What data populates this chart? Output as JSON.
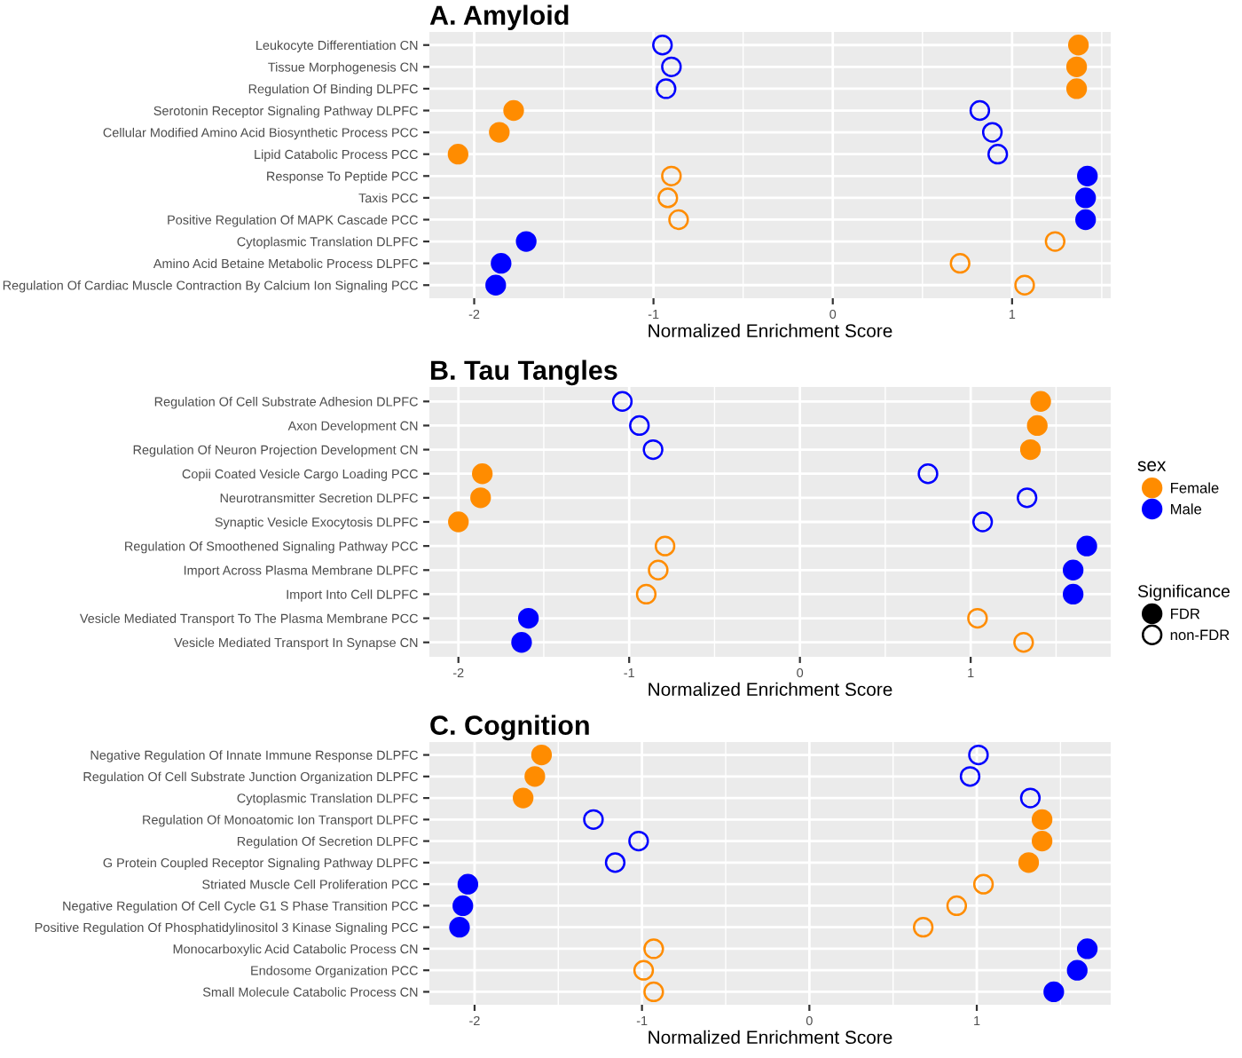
{
  "chart_data": [
    {
      "type": "scatter",
      "title": "A. Amyloid",
      "xlabel": "Normalized Enrichment Score",
      "orientation": "horizontal",
      "grid": true,
      "xlim": [
        -2.25,
        1.55
      ],
      "xticks": [
        -2,
        -1,
        0,
        1
      ],
      "categories": [
        "Leukocyte Differentiation CN",
        "Tissue Morphogenesis CN",
        "Regulation Of Binding DLPFC",
        "Serotonin Receptor Signaling Pathway DLPFC",
        "Cellular Modified Amino Acid Biosynthetic Process PCC",
        "Lipid Catabolic Process PCC",
        "Response To Peptide PCC",
        "Taxis PCC",
        "Positive Regulation Of MAPK Cascade PCC",
        "Cytoplasmic Translation DLPFC",
        "Amino Acid Betaine Metabolic Process DLPFC",
        "Regulation Of Cardiac Muscle Contraction By Calcium Ion Signaling PCC"
      ],
      "series": [
        {
          "color": "#ff8c00",
          "marker": "circle",
          "values": [
            1.37,
            1.36,
            1.36,
            -1.78,
            -1.86,
            -2.09,
            null,
            null,
            null,
            null,
            null,
            null
          ]
        },
        {
          "color": "#ff8c00",
          "marker": "open circle",
          "values": [
            null,
            null,
            null,
            null,
            null,
            null,
            -0.9,
            -0.92,
            -0.86,
            1.24,
            0.71,
            1.07
          ]
        },
        {
          "color": "#0000ff",
          "marker": "circle",
          "values": [
            null,
            null,
            null,
            null,
            null,
            null,
            1.42,
            1.41,
            1.41,
            -1.71,
            -1.85,
            -1.88
          ]
        },
        {
          "color": "#0000ff",
          "marker": "open circle",
          "values": [
            -0.95,
            -0.9,
            -0.93,
            0.82,
            0.89,
            0.92,
            null,
            null,
            null,
            null,
            null,
            null
          ]
        }
      ]
    },
    {
      "type": "scatter",
      "title": "B. Tau Tangles",
      "xlabel": "Normalized Enrichment Score",
      "orientation": "horizontal",
      "grid": true,
      "xlim": [
        -2.17,
        1.82
      ],
      "xticks": [
        -2,
        -1,
        0,
        1
      ],
      "legend": "right",
      "legend_title": "sex",
      "annotations": [
        "Significance"
      ],
      "categories": [
        "Regulation Of Cell Substrate Adhesion DLPFC",
        "Axon Development CN",
        "Regulation Of Neuron Projection Development CN",
        "Copii Coated Vesicle Cargo Loading PCC",
        "Neurotransmitter Secretion DLPFC",
        "Synaptic Vesicle Exocytosis DLPFC",
        "Regulation Of Smoothened Signaling Pathway PCC",
        "Import Across Plasma Membrane DLPFC",
        "Import Into Cell DLPFC",
        "Vesicle Mediated Transport To The Plasma Membrane PCC",
        "Vesicle Mediated Transport In Synapse CN"
      ],
      "series": [
        {
          "name": "Female",
          "color": "#ff8c00",
          "marker": "circle",
          "values": [
            1.41,
            1.39,
            1.35,
            -1.86,
            -1.87,
            -2.0,
            null,
            null,
            null,
            null,
            null
          ]
        },
        {
          "color": "#ff8c00",
          "marker": "open circle",
          "values": [
            null,
            null,
            null,
            null,
            null,
            null,
            -0.79,
            -0.83,
            -0.9,
            1.04,
            1.31
          ]
        },
        {
          "name": "Male",
          "color": "#0000ff",
          "marker": "circle",
          "values": [
            null,
            null,
            null,
            null,
            null,
            null,
            1.68,
            1.6,
            1.6,
            -1.59,
            -1.63
          ]
        },
        {
          "color": "#0000ff",
          "marker": "open circle",
          "values": [
            -1.04,
            -0.94,
            -0.86,
            0.75,
            1.33,
            1.07,
            null,
            null,
            null,
            null,
            null
          ]
        },
        {
          "name": "FDR",
          "color": "#000000",
          "marker": "circle",
          "values": [
            null,
            null,
            null,
            null,
            null,
            null,
            null,
            null,
            null,
            null,
            null
          ]
        },
        {
          "name": "non-FDR",
          "color": "#000000",
          "marker": "open circle",
          "values": [
            null,
            null,
            null,
            null,
            null,
            null,
            null,
            null,
            null,
            null,
            null
          ]
        }
      ]
    },
    {
      "type": "scatter",
      "title": "C. Cognition",
      "xlabel": "Normalized Enrichment Score",
      "orientation": "horizontal",
      "grid": true,
      "xlim": [
        -2.27,
        1.8
      ],
      "xticks": [
        -2,
        -1,
        0,
        1
      ],
      "categories": [
        "Negative Regulation Of Innate Immune Response DLPFC",
        "Regulation Of Cell Substrate Junction Organization DLPFC",
        "Cytoplasmic Translation DLPFC",
        "Regulation Of Monoatomic Ion Transport DLPFC",
        "Regulation Of Secretion DLPFC",
        "G Protein Coupled Receptor Signaling Pathway DLPFC",
        "Striated Muscle Cell Proliferation PCC",
        "Negative Regulation Of Cell Cycle G1 S Phase Transition PCC",
        "Positive Regulation Of Phosphatidylinositol 3 Kinase Signaling PCC",
        "Monocarboxylic Acid Catabolic Process CN",
        "Endosome Organization PCC",
        "Small Molecule Catabolic Process CN"
      ],
      "series": [
        {
          "color": "#ff8c00",
          "marker": "circle",
          "values": [
            -1.6,
            -1.64,
            -1.71,
            1.39,
            1.39,
            1.31,
            null,
            null,
            null,
            null,
            null,
            null
          ]
        },
        {
          "color": "#ff8c00",
          "marker": "open circle",
          "values": [
            null,
            null,
            null,
            null,
            null,
            null,
            1.04,
            0.88,
            0.68,
            -0.93,
            -0.99,
            -0.93
          ]
        },
        {
          "color": "#0000ff",
          "marker": "circle",
          "values": [
            null,
            null,
            null,
            null,
            null,
            null,
            -2.04,
            -2.07,
            -2.09,
            1.66,
            1.6,
            1.46
          ]
        },
        {
          "color": "#0000ff",
          "marker": "open circle",
          "values": [
            1.01,
            0.96,
            1.32,
            -1.29,
            -1.02,
            -1.16,
            null,
            null,
            null,
            null,
            null,
            null
          ]
        }
      ]
    }
  ]
}
